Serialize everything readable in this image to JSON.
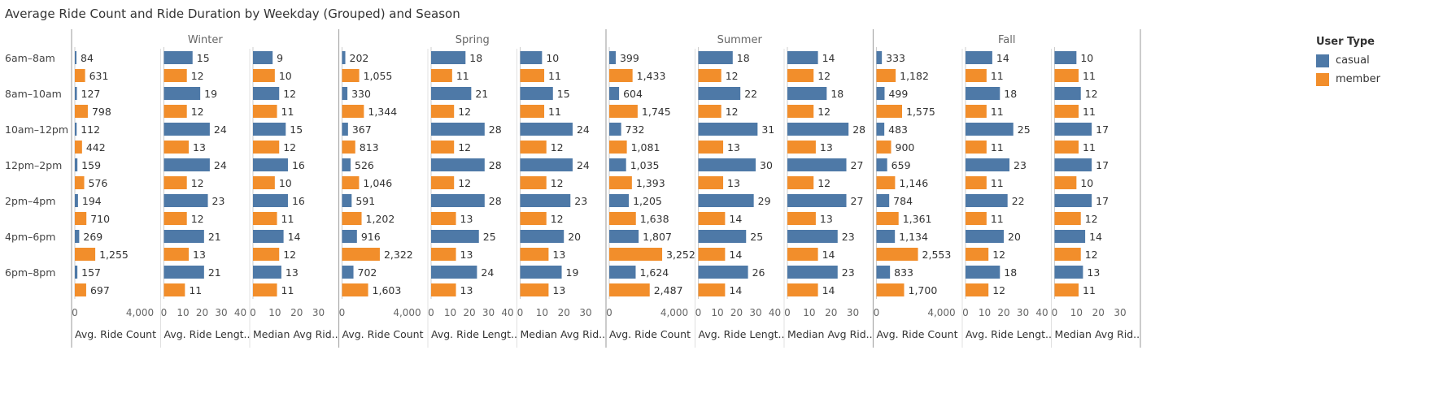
{
  "title": "Average Ride Count and Ride Duration by Weekday (Grouped) and Season",
  "legend": {
    "title": "User Type",
    "items": [
      {
        "label": "casual",
        "color": "#4e79a7"
      },
      {
        "label": "member",
        "color": "#f28e2b"
      }
    ]
  },
  "chart_data": {
    "type": "bar",
    "orientation": "horizontal",
    "seasons": [
      "Winter",
      "Spring",
      "Summer",
      "Fall"
    ],
    "time_slots": [
      "6am-8am",
      "8am-10am",
      "10am-12pm",
      "12pm-2pm",
      "2pm-4pm",
      "4pm-6pm",
      "6pm-8pm"
    ],
    "user_types": [
      "casual",
      "member"
    ],
    "measures": [
      {
        "label": "Avg. Ride Count",
        "xlim": [
          0,
          5000
        ],
        "ticks": [
          0,
          4000
        ]
      },
      {
        "label": "Avg.  Ride Lengt..",
        "xlim": [
          0,
          40
        ],
        "ticks": [
          0,
          10,
          20,
          30,
          40
        ]
      },
      {
        "label": "Median Avg Rid..",
        "xlim": [
          0,
          35
        ],
        "ticks": [
          0,
          10,
          20,
          30
        ]
      }
    ],
    "values": {
      "Winter": [
        [
          [
            84,
            631
          ],
          [
            127,
            798
          ],
          [
            112,
            442
          ],
          [
            159,
            576
          ],
          [
            194,
            710
          ],
          [
            269,
            1255
          ],
          [
            157,
            697
          ]
        ],
        [
          [
            15,
            12
          ],
          [
            19,
            12
          ],
          [
            24,
            13
          ],
          [
            24,
            12
          ],
          [
            23,
            12
          ],
          [
            21,
            13
          ],
          [
            21,
            11
          ]
        ],
        [
          [
            9,
            10
          ],
          [
            12,
            11
          ],
          [
            15,
            12
          ],
          [
            16,
            10
          ],
          [
            16,
            11
          ],
          [
            14,
            12
          ],
          [
            13,
            11
          ]
        ]
      ],
      "Spring": [
        [
          [
            202,
            1055
          ],
          [
            330,
            1344
          ],
          [
            367,
            813
          ],
          [
            526,
            1046
          ],
          [
            591,
            1202
          ],
          [
            916,
            2322
          ],
          [
            702,
            1603
          ]
        ],
        [
          [
            18,
            11
          ],
          [
            21,
            12
          ],
          [
            28,
            12
          ],
          [
            28,
            12
          ],
          [
            28,
            13
          ],
          [
            25,
            13
          ],
          [
            24,
            13
          ]
        ],
        [
          [
            10,
            11
          ],
          [
            15,
            11
          ],
          [
            24,
            12
          ],
          [
            24,
            12
          ],
          [
            23,
            12
          ],
          [
            20,
            13
          ],
          [
            19,
            13
          ]
        ]
      ],
      "Summer": [
        [
          [
            399,
            1433
          ],
          [
            604,
            1745
          ],
          [
            732,
            1081
          ],
          [
            1035,
            1393
          ],
          [
            1205,
            1638
          ],
          [
            1807,
            3252
          ],
          [
            1624,
            2487
          ]
        ],
        [
          [
            18,
            12
          ],
          [
            22,
            12
          ],
          [
            31,
            13
          ],
          [
            30,
            13
          ],
          [
            29,
            14
          ],
          [
            25,
            14
          ],
          [
            26,
            14
          ]
        ],
        [
          [
            14,
            12
          ],
          [
            18,
            12
          ],
          [
            28,
            13
          ],
          [
            27,
            12
          ],
          [
            27,
            13
          ],
          [
            23,
            14
          ],
          [
            23,
            14
          ]
        ]
      ],
      "Fall": [
        [
          [
            333,
            1182
          ],
          [
            499,
            1575
          ],
          [
            483,
            900
          ],
          [
            659,
            1146
          ],
          [
            784,
            1361
          ],
          [
            1134,
            2553
          ],
          [
            833,
            1700
          ]
        ],
        [
          [
            14,
            11
          ],
          [
            18,
            11
          ],
          [
            25,
            11
          ],
          [
            23,
            11
          ],
          [
            22,
            11
          ],
          [
            20,
            12
          ],
          [
            18,
            12
          ]
        ],
        [
          [
            10,
            11
          ],
          [
            12,
            11
          ],
          [
            17,
            11
          ],
          [
            17,
            10
          ],
          [
            17,
            12
          ],
          [
            14,
            12
          ],
          [
            13,
            11
          ]
        ]
      ]
    },
    "grid": false,
    "legend_position": "right"
  }
}
